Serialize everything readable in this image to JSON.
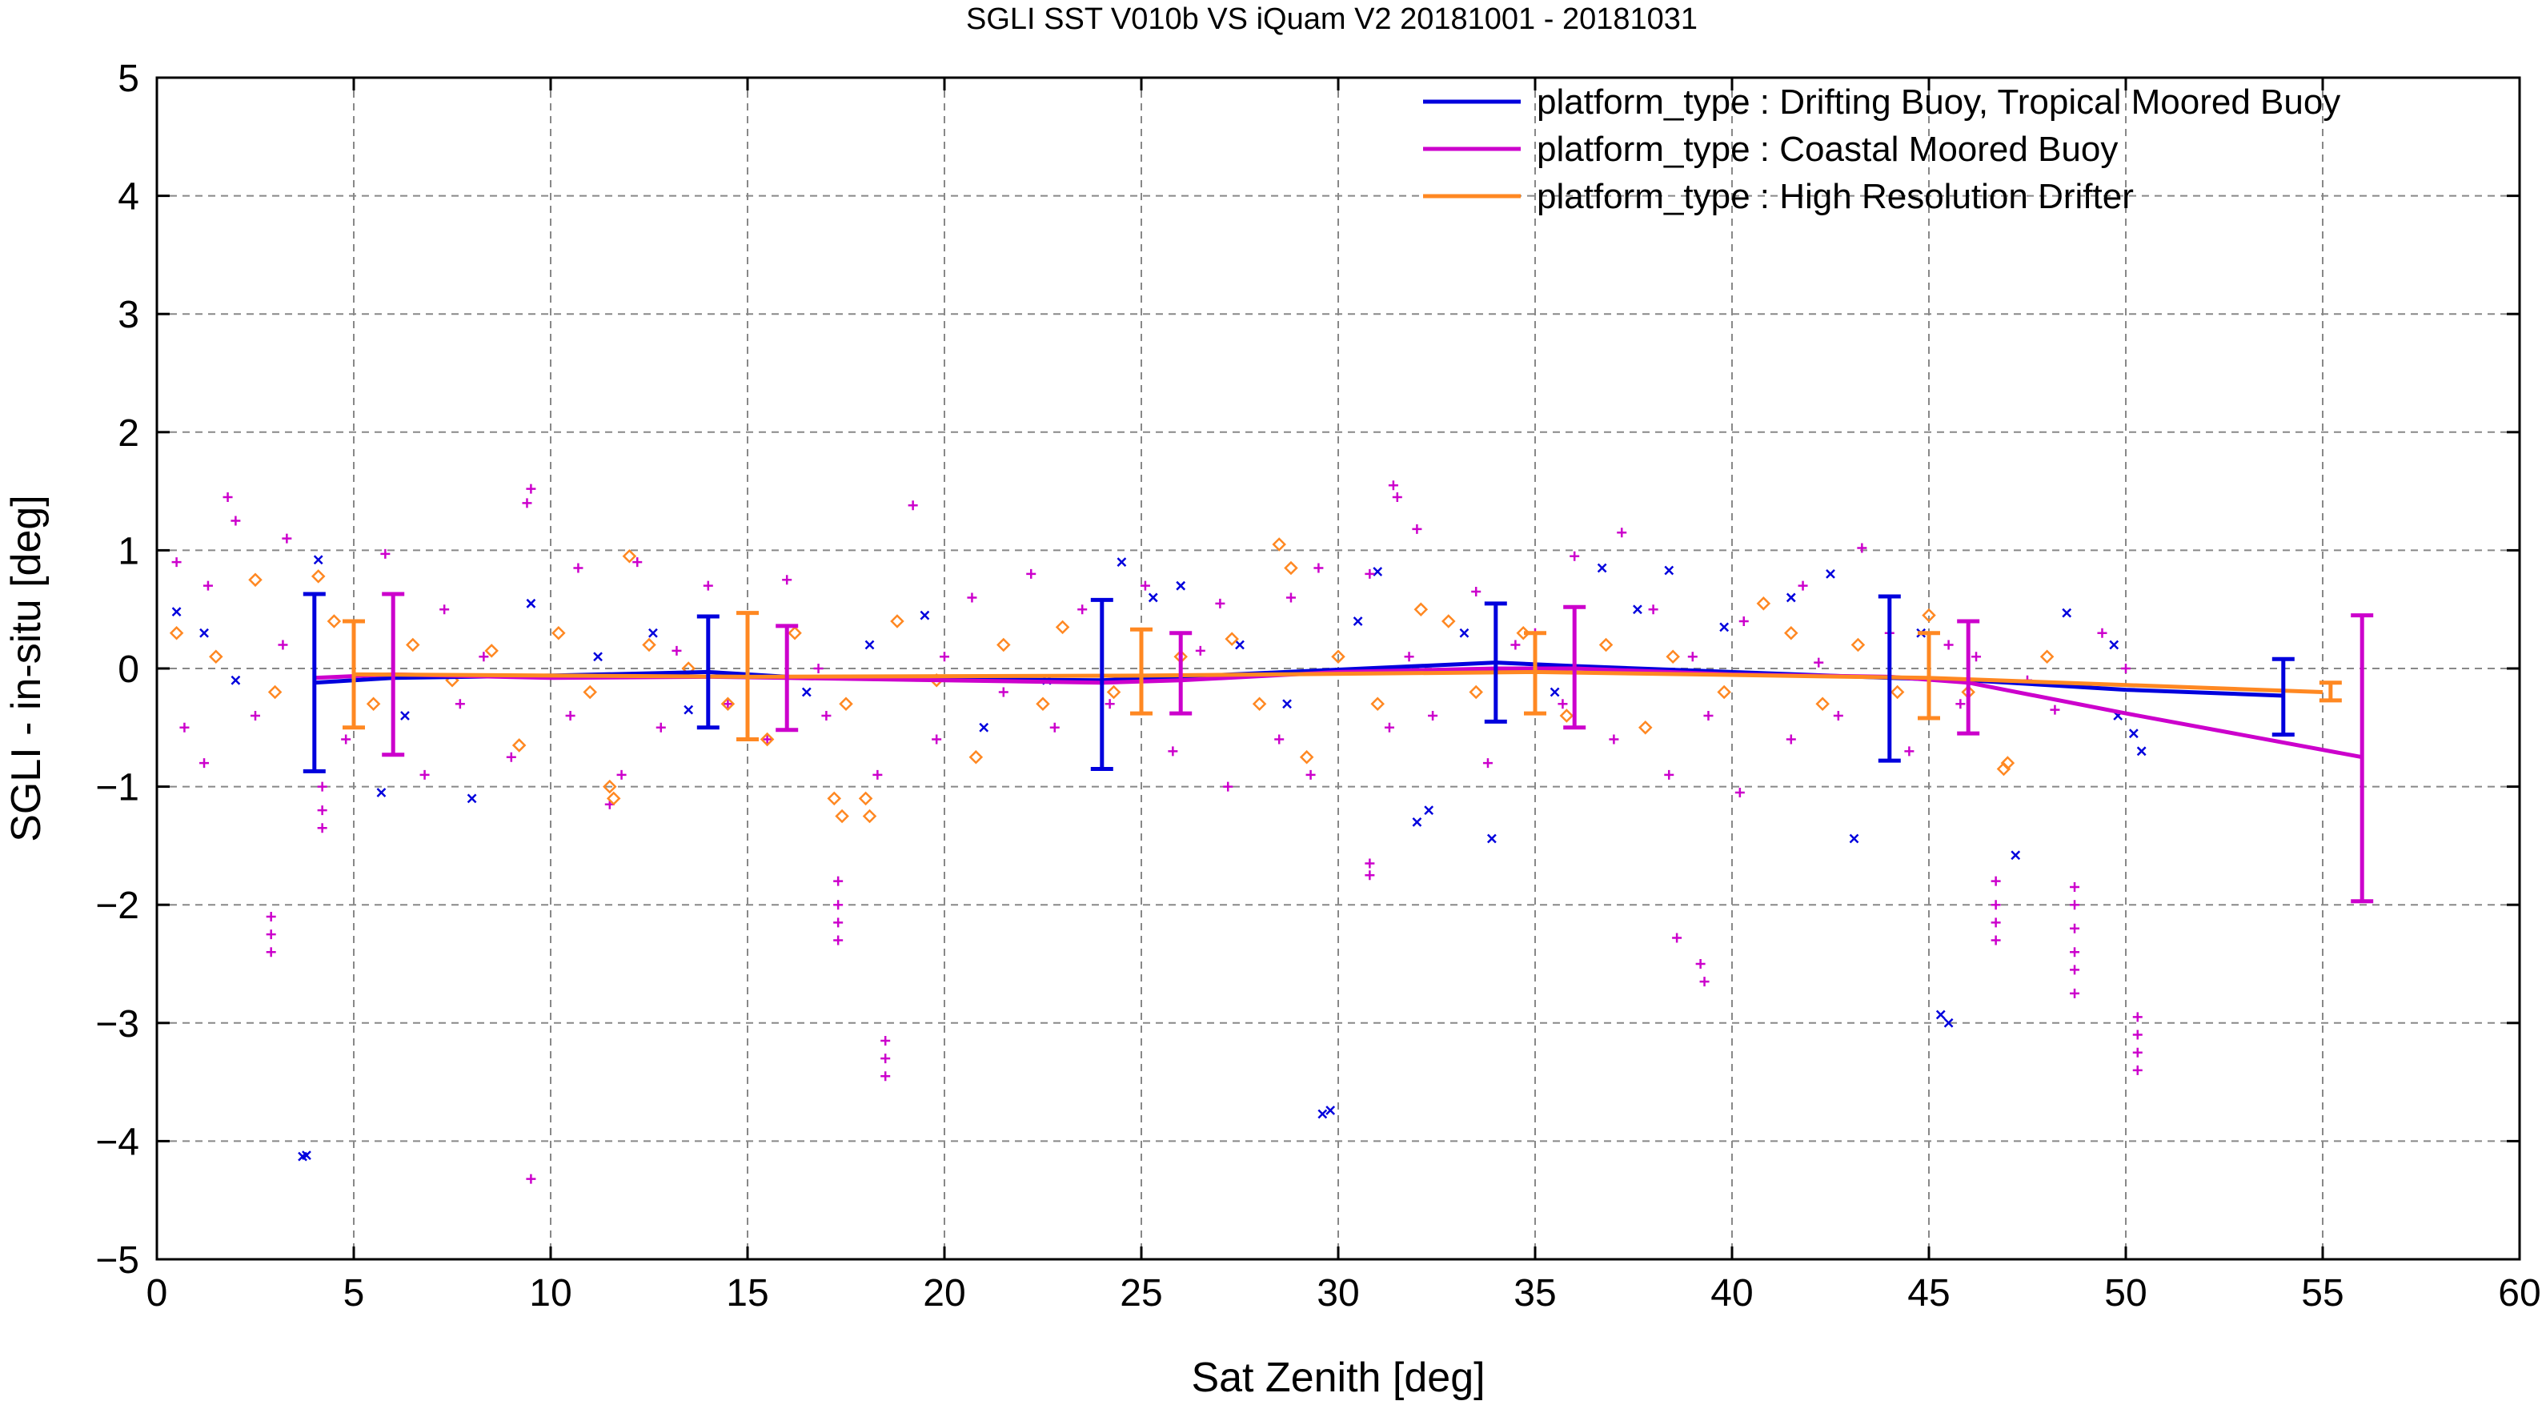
{
  "chart_data": {
    "type": "scatter",
    "title": "SGLI SST V010b VS iQuam V2 20181001 - 20181031",
    "xlabel": "Sat Zenith [deg]",
    "ylabel": "SGLI - in-situ [deg]",
    "xlim": [
      0,
      60
    ],
    "ylim": [
      -5,
      5
    ],
    "xticks": [
      0,
      5,
      10,
      15,
      20,
      25,
      30,
      35,
      40,
      45,
      50,
      55,
      60
    ],
    "yticks": [
      -5,
      -4,
      -3,
      -2,
      -1,
      0,
      1,
      2,
      3,
      4,
      5
    ],
    "xtick_labels": [
      "0",
      "5",
      "10",
      "15",
      "20",
      "25",
      "30",
      "35",
      "40",
      "45",
      "50",
      "55",
      "60"
    ],
    "ytick_labels": [
      "−5",
      "−4",
      "−3",
      "−2",
      "−1",
      "0",
      "1",
      "2",
      "3",
      "4",
      "5"
    ],
    "grid": true,
    "legend_position": "top-right",
    "series": [
      {
        "name": "platform_type : Drifting Buoy, Tropical Moored Buoy",
        "color": "#0000dd",
        "marker": "x",
        "mean_line": {
          "x": [
            4,
            6,
            10,
            14,
            16,
            20,
            24,
            26,
            30,
            34,
            36,
            40,
            44,
            46,
            50,
            54
          ],
          "y": [
            -0.12,
            -0.08,
            -0.06,
            -0.03,
            -0.07,
            -0.09,
            -0.1,
            -0.07,
            -0.01,
            0.05,
            0.02,
            -0.03,
            -0.08,
            -0.1,
            -0.18,
            -0.23
          ]
        },
        "error_bars": [
          {
            "x": 4,
            "y": -0.12,
            "low": -0.87,
            "high": 0.63
          },
          {
            "x": 14,
            "y": -0.03,
            "low": -0.5,
            "high": 0.44
          },
          {
            "x": 24,
            "y": -0.1,
            "low": -0.85,
            "high": 0.58
          },
          {
            "x": 34,
            "y": 0.05,
            "low": -0.45,
            "high": 0.55
          },
          {
            "x": 44,
            "y": -0.08,
            "low": -0.78,
            "high": 0.61
          },
          {
            "x": 54,
            "y": -0.23,
            "low": -0.56,
            "high": 0.08
          }
        ],
        "points": [
          [
            3.7,
            -4.13
          ],
          [
            3.8,
            -4.12
          ],
          [
            29.6,
            -3.77
          ],
          [
            29.8,
            -3.74
          ],
          [
            45.3,
            -2.93
          ],
          [
            45.5,
            -3.0
          ],
          [
            43.1,
            -1.44
          ],
          [
            33.9,
            -1.44
          ],
          [
            32.0,
            -1.3
          ],
          [
            32.3,
            -1.2
          ],
          [
            8.0,
            -1.1
          ],
          [
            5.7,
            -1.05
          ],
          [
            47.2,
            -1.58
          ],
          [
            24.5,
            0.9
          ],
          [
            36.7,
            0.85
          ],
          [
            42.5,
            0.8
          ],
          [
            31.0,
            0.82
          ],
          [
            0.5,
            0.48
          ],
          [
            1.2,
            0.3
          ],
          [
            2.0,
            -0.1
          ],
          [
            4.1,
            0.92
          ],
          [
            6.3,
            -0.4
          ],
          [
            9.5,
            0.55
          ],
          [
            12.6,
            0.3
          ],
          [
            18.1,
            0.2
          ],
          [
            19.5,
            0.45
          ],
          [
            21.0,
            -0.5
          ],
          [
            25.3,
            0.6
          ],
          [
            27.5,
            0.2
          ],
          [
            28.7,
            -0.3
          ],
          [
            30.5,
            0.4
          ],
          [
            33.2,
            0.3
          ],
          [
            35.5,
            -0.2
          ],
          [
            37.6,
            0.5
          ],
          [
            39.8,
            0.35
          ],
          [
            41.5,
            0.6
          ],
          [
            44.8,
            0.3
          ],
          [
            48.5,
            0.47
          ],
          [
            49.7,
            0.2
          ],
          [
            50.2,
            -0.55
          ],
          [
            50.4,
            -0.7
          ],
          [
            49.8,
            -0.4
          ],
          [
            16.5,
            -0.2
          ],
          [
            11.2,
            0.1
          ],
          [
            22.6,
            -0.1
          ],
          [
            38.4,
            0.83
          ],
          [
            26.0,
            0.7
          ],
          [
            13.5,
            -0.35
          ]
        ]
      },
      {
        "name": "platform_type : Coastal Moored Buoy",
        "color": "#cc00cc",
        "marker": "+",
        "mean_line": {
          "x": [
            4,
            6,
            10,
            14,
            16,
            20,
            24,
            26,
            30,
            34,
            36,
            40,
            44,
            46,
            50,
            56
          ],
          "y": [
            -0.08,
            -0.05,
            -0.08,
            -0.07,
            -0.08,
            -0.1,
            -0.12,
            -0.1,
            -0.03,
            0.0,
            0.0,
            -0.05,
            -0.07,
            -0.12,
            -0.38,
            -0.75
          ]
        },
        "error_bars": [
          {
            "x": 6,
            "y": -0.05,
            "low": -0.73,
            "high": 0.63
          },
          {
            "x": 16,
            "y": -0.08,
            "low": -0.52,
            "high": 0.36
          },
          {
            "x": 26,
            "y": -0.1,
            "low": -0.38,
            "high": 0.3
          },
          {
            "x": 36,
            "y": 0.0,
            "low": -0.5,
            "high": 0.52
          },
          {
            "x": 46,
            "y": -0.12,
            "low": -0.55,
            "high": 0.4
          },
          {
            "x": 56,
            "y": -0.75,
            "low": -1.97,
            "high": 0.45
          }
        ],
        "points": [
          [
            9.5,
            -4.32
          ],
          [
            18.5,
            -3.15
          ],
          [
            18.5,
            -3.3
          ],
          [
            18.5,
            -3.45
          ],
          [
            50.3,
            -2.95
          ],
          [
            50.3,
            -3.1
          ],
          [
            50.3,
            -3.25
          ],
          [
            50.3,
            -3.4
          ],
          [
            2.9,
            -2.1
          ],
          [
            2.9,
            -2.25
          ],
          [
            2.9,
            -2.4
          ],
          [
            17.3,
            -1.8
          ],
          [
            17.3,
            -2.0
          ],
          [
            17.3,
            -2.15
          ],
          [
            17.3,
            -2.3
          ],
          [
            38.6,
            -2.28
          ],
          [
            39.2,
            -2.5
          ],
          [
            39.3,
            -2.65
          ],
          [
            46.7,
            -1.8
          ],
          [
            46.7,
            -2.0
          ],
          [
            46.7,
            -2.15
          ],
          [
            46.7,
            -2.3
          ],
          [
            48.7,
            -1.85
          ],
          [
            48.7,
            -2.0
          ],
          [
            48.7,
            -2.2
          ],
          [
            48.7,
            -2.4
          ],
          [
            48.7,
            -2.55
          ],
          [
            48.7,
            -2.75
          ],
          [
            30.8,
            -1.65
          ],
          [
            30.8,
            -1.75
          ],
          [
            4.2,
            -1.0
          ],
          [
            4.2,
            -1.2
          ],
          [
            4.2,
            -1.35
          ],
          [
            1.8,
            1.45
          ],
          [
            2.0,
            1.25
          ],
          [
            9.5,
            1.52
          ],
          [
            9.4,
            1.4
          ],
          [
            19.2,
            1.38
          ],
          [
            31.4,
            1.55
          ],
          [
            31.5,
            1.45
          ],
          [
            32.0,
            1.18
          ],
          [
            37.2,
            1.15
          ],
          [
            43.3,
            1.02
          ],
          [
            0.5,
            0.9
          ],
          [
            1.3,
            0.7
          ],
          [
            3.3,
            1.1
          ],
          [
            5.8,
            0.97
          ],
          [
            7.3,
            0.5
          ],
          [
            10.7,
            0.85
          ],
          [
            12.2,
            0.9
          ],
          [
            14.0,
            0.7
          ],
          [
            16.0,
            0.75
          ],
          [
            20.7,
            0.6
          ],
          [
            22.2,
            0.8
          ],
          [
            23.5,
            0.5
          ],
          [
            25.1,
            0.7
          ],
          [
            27.0,
            0.55
          ],
          [
            28.8,
            0.6
          ],
          [
            29.5,
            0.85
          ],
          [
            30.8,
            0.8
          ],
          [
            33.5,
            0.65
          ],
          [
            35.0,
            0.3
          ],
          [
            36.0,
            0.95
          ],
          [
            38.0,
            0.5
          ],
          [
            40.3,
            0.4
          ],
          [
            41.8,
            0.7
          ],
          [
            44.0,
            0.3
          ],
          [
            45.5,
            0.2
          ],
          [
            47.5,
            -0.1
          ],
          [
            49.4,
            0.3
          ],
          [
            0.7,
            -0.5
          ],
          [
            1.2,
            -0.8
          ],
          [
            2.5,
            -0.4
          ],
          [
            4.8,
            -0.6
          ],
          [
            6.8,
            -0.9
          ],
          [
            7.7,
            -0.3
          ],
          [
            9.0,
            -0.75
          ],
          [
            10.5,
            -0.4
          ],
          [
            11.5,
            -1.15
          ],
          [
            11.8,
            -0.9
          ],
          [
            12.8,
            -0.5
          ],
          [
            14.5,
            -0.3
          ],
          [
            15.5,
            -0.6
          ],
          [
            17.0,
            -0.4
          ],
          [
            18.3,
            -0.9
          ],
          [
            19.8,
            -0.6
          ],
          [
            21.5,
            -0.2
          ],
          [
            22.8,
            -0.5
          ],
          [
            24.2,
            -0.3
          ],
          [
            25.8,
            -0.7
          ],
          [
            27.2,
            -1.0
          ],
          [
            28.5,
            -0.6
          ],
          [
            29.3,
            -0.9
          ],
          [
            31.3,
            -0.5
          ],
          [
            32.4,
            -0.4
          ],
          [
            33.8,
            -0.8
          ],
          [
            35.7,
            -0.3
          ],
          [
            37.0,
            -0.6
          ],
          [
            38.4,
            -0.9
          ],
          [
            39.4,
            -0.4
          ],
          [
            40.2,
            -1.05
          ],
          [
            41.5,
            -0.6
          ],
          [
            42.7,
            -0.4
          ],
          [
            44.5,
            -0.7
          ],
          [
            45.8,
            -0.3
          ],
          [
            48.2,
            -0.35
          ],
          [
            3.2,
            0.2
          ],
          [
            8.3,
            0.1
          ],
          [
            13.2,
            0.15
          ],
          [
            16.8,
            0.0
          ],
          [
            20.0,
            0.1
          ],
          [
            26.5,
            0.15
          ],
          [
            31.8,
            0.1
          ],
          [
            34.5,
            0.2
          ],
          [
            39.0,
            0.1
          ],
          [
            42.2,
            0.05
          ],
          [
            46.2,
            0.1
          ],
          [
            50.0,
            0.0
          ]
        ]
      },
      {
        "name": "platform_type : High Resolution Drifter",
        "color": "#ff8822",
        "marker": "diamond",
        "mean_line": {
          "x": [
            5,
            15,
            25,
            35,
            45,
            55
          ],
          "y": [
            -0.05,
            -0.07,
            -0.06,
            -0.03,
            -0.08,
            -0.2
          ]
        },
        "error_bars": [
          {
            "x": 5,
            "y": -0.05,
            "low": -0.5,
            "high": 0.4
          },
          {
            "x": 15,
            "y": -0.07,
            "low": -0.6,
            "high": 0.47
          },
          {
            "x": 25,
            "y": -0.06,
            "low": -0.38,
            "high": 0.33
          },
          {
            "x": 35,
            "y": -0.03,
            "low": -0.38,
            "high": 0.3
          },
          {
            "x": 45,
            "y": -0.08,
            "low": -0.42,
            "high": 0.3
          },
          {
            "x": 55.2,
            "y": -0.2,
            "low": -0.27,
            "high": -0.12
          }
        ],
        "points": [
          [
            2.5,
            0.75
          ],
          [
            4.1,
            0.78
          ],
          [
            12.0,
            0.95
          ],
          [
            28.5,
            1.05
          ],
          [
            28.8,
            0.85
          ],
          [
            32.1,
            0.5
          ],
          [
            17.2,
            -1.1
          ],
          [
            17.4,
            -1.25
          ],
          [
            18.0,
            -1.1
          ],
          [
            18.1,
            -1.25
          ],
          [
            11.5,
            -1.0
          ],
          [
            11.6,
            -1.1
          ],
          [
            46.9,
            -0.85
          ],
          [
            47.0,
            -0.8
          ],
          [
            20.8,
            -0.75
          ],
          [
            29.2,
            -0.75
          ],
          [
            9.2,
            -0.65
          ],
          [
            15.5,
            -0.6
          ],
          [
            0.5,
            0.3
          ],
          [
            1.5,
            0.1
          ],
          [
            3.0,
            -0.2
          ],
          [
            4.5,
            0.4
          ],
          [
            5.5,
            -0.3
          ],
          [
            6.5,
            0.2
          ],
          [
            7.5,
            -0.1
          ],
          [
            8.5,
            0.15
          ],
          [
            10.2,
            0.3
          ],
          [
            11.0,
            -0.2
          ],
          [
            12.5,
            0.2
          ],
          [
            13.5,
            0.0
          ],
          [
            14.5,
            -0.3
          ],
          [
            16.2,
            0.3
          ],
          [
            17.5,
            -0.3
          ],
          [
            18.8,
            0.4
          ],
          [
            19.8,
            -0.1
          ],
          [
            21.5,
            0.2
          ],
          [
            22.5,
            -0.3
          ],
          [
            23.0,
            0.35
          ],
          [
            24.3,
            -0.2
          ],
          [
            26.0,
            0.1
          ],
          [
            27.3,
            0.25
          ],
          [
            28.0,
            -0.3
          ],
          [
            30.0,
            0.1
          ],
          [
            31.0,
            -0.3
          ],
          [
            32.8,
            0.4
          ],
          [
            33.5,
            -0.2
          ],
          [
            34.7,
            0.3
          ],
          [
            35.8,
            -0.4
          ],
          [
            36.8,
            0.2
          ],
          [
            37.8,
            -0.5
          ],
          [
            38.5,
            0.1
          ],
          [
            39.8,
            -0.2
          ],
          [
            40.8,
            0.55
          ],
          [
            41.5,
            0.3
          ],
          [
            42.3,
            -0.3
          ],
          [
            43.2,
            0.2
          ],
          [
            44.2,
            -0.2
          ],
          [
            45.0,
            0.45
          ],
          [
            46.0,
            -0.2
          ],
          [
            48.0,
            0.1
          ]
        ]
      }
    ]
  }
}
